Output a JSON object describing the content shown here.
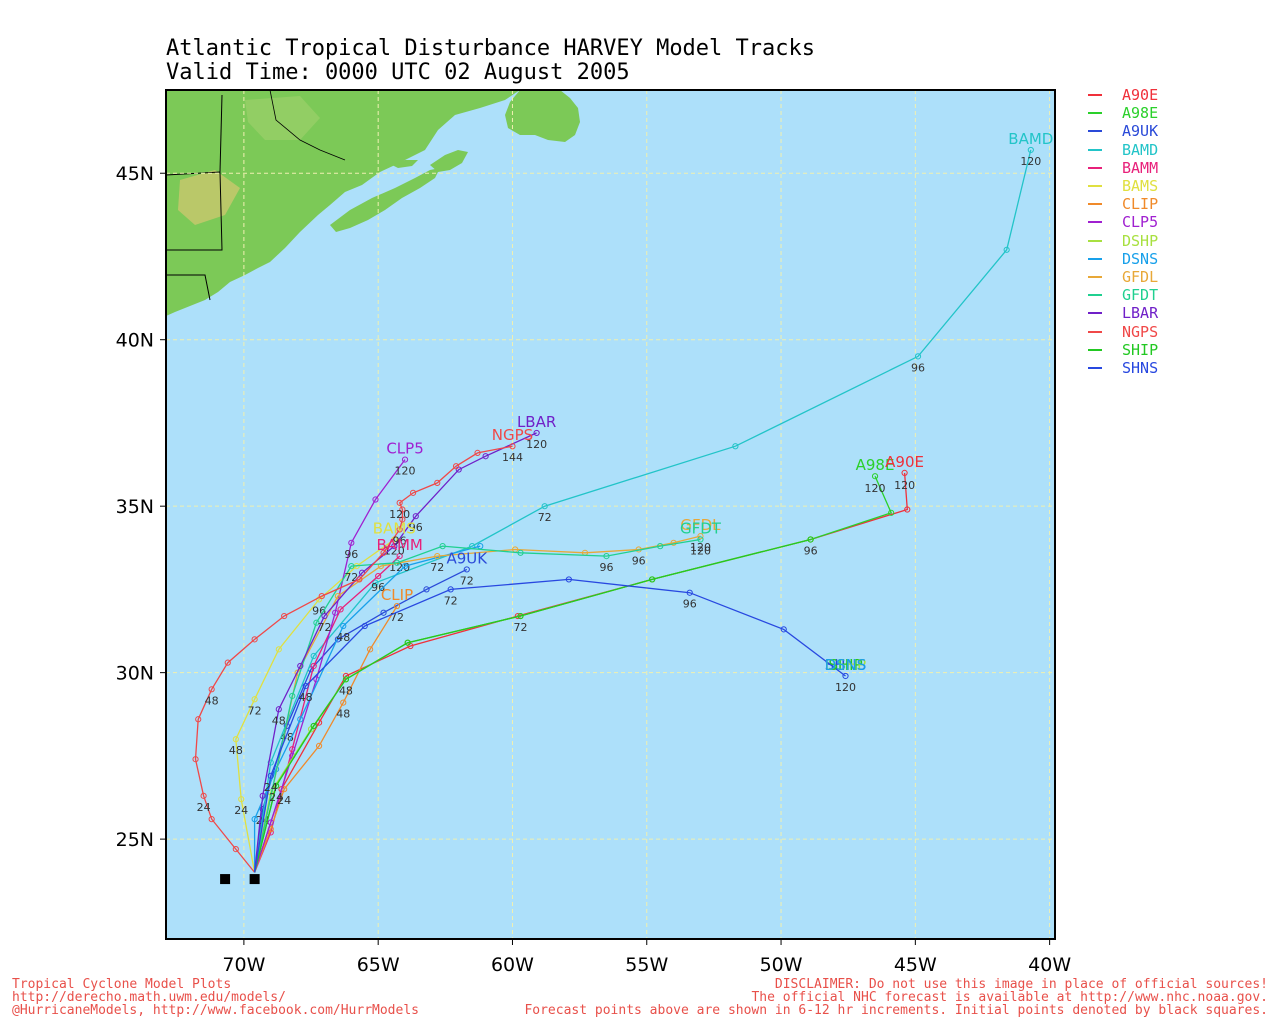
{
  "title": {
    "line1": "Atlantic Tropical Disturbance HARVEY Model Tracks",
    "line2": "Valid Time: 0000 UTC 02 August 2005"
  },
  "axes": {
    "x_ticks": [
      {
        "lon": -70,
        "label": "70W"
      },
      {
        "lon": -65,
        "label": "65W"
      },
      {
        "lon": -60,
        "label": "60W"
      },
      {
        "lon": -55,
        "label": "55W"
      },
      {
        "lon": -50,
        "label": "50W"
      },
      {
        "lon": -45,
        "label": "45W"
      },
      {
        "lon": -40,
        "label": "40W"
      }
    ],
    "y_ticks": [
      {
        "lat": 25,
        "label": "25N"
      },
      {
        "lat": 30,
        "label": "30N"
      },
      {
        "lat": 35,
        "label": "35N"
      },
      {
        "lat": 40,
        "label": "40N"
      },
      {
        "lat": 45,
        "label": "45N"
      }
    ],
    "lon_range": [
      -72.9,
      -39.8
    ],
    "lat_range": [
      22.0,
      47.5
    ],
    "grid": true
  },
  "colors": {
    "ocean": "#ade0fa",
    "land": "#7cc957",
    "grid": "#f0f0b0"
  },
  "legend": [
    {
      "name": "A90E",
      "color": "#f0303a"
    },
    {
      "name": "A98E",
      "color": "#2ad02a"
    },
    {
      "name": "A9UK",
      "color": "#2a4ad8"
    },
    {
      "name": "BAMD",
      "color": "#22c4c8"
    },
    {
      "name": "BAMM",
      "color": "#e8207a"
    },
    {
      "name": "BAMS",
      "color": "#e0e040"
    },
    {
      "name": "CLIP",
      "color": "#f08a2a"
    },
    {
      "name": "CLP5",
      "color": "#a020d0"
    },
    {
      "name": "DSHP",
      "color": "#a8e040"
    },
    {
      "name": "DSNS",
      "color": "#18a0ea"
    },
    {
      "name": "GFDL",
      "color": "#e8a838"
    },
    {
      "name": "GFDT",
      "color": "#20d090"
    },
    {
      "name": "LBAR",
      "color": "#7020c8"
    },
    {
      "name": "NGPS",
      "color": "#f04848"
    },
    {
      "name": "SHIP",
      "color": "#22c822"
    },
    {
      "name": "SHNS",
      "color": "#2848e0"
    }
  ],
  "chart_data": {
    "type": "map-tracks",
    "initial_point": {
      "lon": -69.6,
      "lat": 24.0
    },
    "tracks": [
      {
        "model": "A90E",
        "color": "#f0303a",
        "points": [
          [
            -69.6,
            24.0
          ],
          [
            -68.6,
            26.5
          ],
          [
            -67.2,
            28.5
          ],
          [
            -66.2,
            29.9
          ],
          [
            -63.8,
            30.8
          ],
          [
            -59.8,
            31.7
          ],
          [
            -54.8,
            32.8
          ],
          [
            -48.9,
            34.0
          ],
          [
            -45.3,
            34.9
          ],
          [
            -45.4,
            36.0
          ]
        ],
        "end_hour": "120"
      },
      {
        "model": "A98E",
        "color": "#2ad02a",
        "points": [
          [
            -69.6,
            24.0
          ],
          [
            -68.8,
            26.6
          ],
          [
            -67.4,
            28.4
          ],
          [
            -66.2,
            29.8
          ],
          [
            -63.9,
            30.9
          ],
          [
            -59.7,
            31.7
          ],
          [
            -54.8,
            32.8
          ],
          [
            -48.9,
            34.0
          ],
          [
            -45.9,
            34.8
          ],
          [
            -46.5,
            35.9
          ]
        ],
        "end_hour": "120"
      },
      {
        "model": "A9UK",
        "color": "#2a4ad8",
        "points": [
          [
            -69.6,
            24.0
          ],
          [
            -69.3,
            25.9
          ],
          [
            -68.4,
            28.4
          ],
          [
            -67.5,
            30.1
          ],
          [
            -66.5,
            31.0
          ],
          [
            -64.8,
            31.8
          ],
          [
            -63.2,
            32.5
          ],
          [
            -61.7,
            33.1
          ]
        ],
        "labels": [
          {
            "h": "24",
            "at": 1
          },
          {
            "h": "48",
            "at": 2
          },
          {
            "h": "72",
            "at": 7
          }
        ]
      },
      {
        "model": "BAMD",
        "color": "#22c4c8",
        "points": [
          [
            -69.6,
            24.0
          ],
          [
            -69.0,
            27.3
          ],
          [
            -67.4,
            30.5
          ],
          [
            -65.1,
            32.7
          ],
          [
            -61.5,
            33.8
          ],
          [
            -58.8,
            35.0
          ],
          [
            -51.7,
            36.8
          ],
          [
            -44.9,
            39.5
          ],
          [
            -41.6,
            42.7
          ],
          [
            -40.7,
            45.7
          ]
        ],
        "labels": [
          {
            "h": "72",
            "at": 5
          },
          {
            "h": "96",
            "at": 7
          },
          {
            "h": "120",
            "at": 9
          }
        ]
      },
      {
        "model": "BAMM",
        "color": "#e8207a",
        "points": [
          [
            -69.6,
            24.0
          ],
          [
            -69.0,
            25.2
          ],
          [
            -68.2,
            27.7
          ],
          [
            -67.4,
            30.2
          ],
          [
            -66.4,
            31.9
          ],
          [
            -65.0,
            32.9
          ],
          [
            -64.2,
            33.5
          ]
        ],
        "labels": [
          {
            "h": "96",
            "at": 5
          },
          {
            "h": "120",
            "at": 6
          }
        ]
      },
      {
        "model": "BAMS",
        "color": "#e0e040",
        "points": [
          [
            -69.6,
            24.0
          ],
          [
            -70.1,
            26.2
          ],
          [
            -70.3,
            28.0
          ],
          [
            -69.6,
            29.2
          ],
          [
            -68.7,
            30.7
          ],
          [
            -67.2,
            32.2
          ],
          [
            -65.8,
            33.2
          ],
          [
            -64.4,
            34.0
          ]
        ],
        "labels": [
          {
            "h": "24",
            "at": 1
          },
          {
            "h": "48",
            "at": 2
          },
          {
            "h": "72",
            "at": 3
          },
          {
            "h": "96",
            "at": 5
          },
          {
            "h": "120",
            "at": 7
          }
        ]
      },
      {
        "model": "CLIP",
        "color": "#f08a2a",
        "points": [
          [
            -69.6,
            24.0
          ],
          [
            -69.0,
            25.3
          ],
          [
            -68.5,
            26.5
          ],
          [
            -67.2,
            27.8
          ],
          [
            -66.3,
            29.1
          ],
          [
            -65.3,
            30.7
          ],
          [
            -64.3,
            32.0
          ]
        ],
        "labels": [
          {
            "h": "24",
            "at": 2
          },
          {
            "h": "48",
            "at": 4
          },
          {
            "h": "72",
            "at": 6
          }
        ]
      },
      {
        "model": "CLP5",
        "color": "#a020d0",
        "points": [
          [
            -69.6,
            24.0
          ],
          [
            -69.0,
            25.5
          ],
          [
            -68.2,
            27.5
          ],
          [
            -67.3,
            29.8
          ],
          [
            -66.6,
            31.8
          ],
          [
            -66.0,
            33.9
          ],
          [
            -65.1,
            35.2
          ],
          [
            -64.0,
            36.4
          ]
        ],
        "labels": [
          {
            "h": "96",
            "at": 5
          },
          {
            "h": "120",
            "at": 7
          }
        ]
      },
      {
        "model": "DSHP",
        "color": "#a8e040",
        "points": [
          [
            -69.6,
            24.0
          ],
          [
            -69.0,
            26.4
          ],
          [
            -67.5,
            28.3
          ],
          [
            -66.2,
            29.8
          ],
          [
            -63.9,
            30.9
          ],
          [
            -59.7,
            31.7
          ],
          [
            -54.8,
            32.8
          ],
          [
            -48.9,
            34.0
          ]
        ]
      },
      {
        "model": "DSNS",
        "color": "#18a0ea",
        "points": [
          [
            -69.6,
            24.0
          ],
          [
            -69.6,
            25.6
          ],
          [
            -68.8,
            27.1
          ],
          [
            -67.9,
            28.6
          ],
          [
            -66.3,
            31.4
          ],
          [
            -64.0,
            33.2
          ],
          [
            -61.2,
            33.8
          ]
        ],
        "labels": [
          {
            "h": "48",
            "at": 4
          }
        ]
      },
      {
        "model": "GFDL",
        "color": "#e8a838",
        "points": [
          [
            -69.6,
            24.0
          ],
          [
            -68.0,
            30.0
          ],
          [
            -66.5,
            32.3
          ],
          [
            -64.9,
            33.2
          ],
          [
            -62.8,
            33.5
          ],
          [
            -59.9,
            33.7
          ],
          [
            -57.3,
            33.6
          ],
          [
            -55.3,
            33.7
          ],
          [
            -54.0,
            33.9
          ],
          [
            -53.0,
            34.1
          ]
        ],
        "labels": [
          {
            "h": "72",
            "at": 4
          },
          {
            "h": "96",
            "at": 7
          },
          {
            "h": "120",
            "at": 9
          }
        ]
      },
      {
        "model": "GFDT",
        "color": "#20d090",
        "points": [
          [
            -69.6,
            24.0
          ],
          [
            -68.2,
            29.3
          ],
          [
            -67.3,
            31.5
          ],
          [
            -66.0,
            33.2
          ],
          [
            -64.3,
            33.3
          ],
          [
            -62.6,
            33.8
          ],
          [
            -59.7,
            33.6
          ],
          [
            -56.5,
            33.5
          ],
          [
            -54.5,
            33.8
          ],
          [
            -53.0,
            34.0
          ]
        ],
        "labels": [
          {
            "h": "72",
            "at": 3
          },
          {
            "h": "96",
            "at": 7
          },
          {
            "h": "120",
            "at": 9
          }
        ]
      },
      {
        "model": "LBAR",
        "color": "#7020c8",
        "points": [
          [
            -69.6,
            24.0
          ],
          [
            -69.3,
            26.3
          ],
          [
            -68.7,
            28.9
          ],
          [
            -67.9,
            30.2
          ],
          [
            -67.0,
            31.7
          ],
          [
            -65.6,
            33.0
          ],
          [
            -64.4,
            33.8
          ],
          [
            -63.6,
            34.7
          ],
          [
            -62.0,
            36.1
          ],
          [
            -61.0,
            36.5
          ],
          [
            -59.1,
            37.2
          ]
        ],
        "labels": [
          {
            "h": "48",
            "at": 2
          },
          {
            "h": "72",
            "at": 4
          },
          {
            "h": "96",
            "at": 7
          },
          {
            "h": "120",
            "at": 10
          }
        ]
      },
      {
        "model": "NGPS",
        "color": "#f04848",
        "points": [
          [
            -69.6,
            24.0
          ],
          [
            -70.3,
            24.7
          ],
          [
            -71.2,
            25.6
          ],
          [
            -71.5,
            26.3
          ],
          [
            -71.8,
            27.4
          ],
          [
            -71.7,
            28.6
          ],
          [
            -71.2,
            29.5
          ],
          [
            -70.6,
            30.3
          ],
          [
            -69.6,
            31.0
          ],
          [
            -68.5,
            31.7
          ],
          [
            -67.1,
            32.3
          ],
          [
            -65.7,
            32.8
          ],
          [
            -64.8,
            33.6
          ],
          [
            -64.2,
            34.3
          ],
          [
            -64.1,
            34.6
          ],
          [
            -64.1,
            34.9
          ],
          [
            -64.2,
            35.1
          ],
          [
            -63.7,
            35.4
          ],
          [
            -62.8,
            35.7
          ],
          [
            -62.1,
            36.2
          ],
          [
            -61.3,
            36.6
          ],
          [
            -60.0,
            36.8
          ]
        ],
        "labels": [
          {
            "h": "24",
            "at": 3
          },
          {
            "h": "48",
            "at": 6
          },
          {
            "h": "96",
            "at": 13
          },
          {
            "h": "120",
            "at": 16
          },
          {
            "h": "144",
            "at": 21
          }
        ]
      },
      {
        "model": "SHIP",
        "color": "#22c822",
        "points": [
          [
            -69.6,
            24.0
          ],
          [
            -68.8,
            26.6
          ],
          [
            -67.4,
            28.4
          ],
          [
            -66.2,
            29.8
          ],
          [
            -63.9,
            30.9
          ],
          [
            -59.7,
            31.7
          ],
          [
            -54.8,
            32.8
          ],
          [
            -48.9,
            34.0
          ]
        ],
        "labels": [
          {
            "h": "24",
            "at": 1
          },
          {
            "h": "48",
            "at": 3
          },
          {
            "h": "72",
            "at": 5
          },
          {
            "h": "96",
            "at": 7
          }
        ]
      },
      {
        "model": "SHNS",
        "color": "#2848e0",
        "points": [
          [
            -69.6,
            24.0
          ],
          [
            -69.0,
            26.9
          ],
          [
            -67.7,
            29.6
          ],
          [
            -65.5,
            31.4
          ],
          [
            -62.3,
            32.5
          ],
          [
            -57.9,
            32.8
          ],
          [
            -53.4,
            32.4
          ],
          [
            -49.9,
            31.3
          ],
          [
            -47.6,
            29.9
          ]
        ],
        "labels": [
          {
            "h": "24",
            "at": 1
          },
          {
            "h": "48",
            "at": 2
          },
          {
            "h": "72",
            "at": 4
          },
          {
            "h": "96",
            "at": 6
          },
          {
            "h": "120",
            "at": 8
          }
        ]
      }
    ],
    "end_labels": [
      {
        "text": "BAMD",
        "lon": -40.7,
        "lat": 45.7,
        "color": "#22c4c8"
      },
      {
        "text": "A98E",
        "lon": -46.5,
        "lat": 35.9,
        "color": "#2ad02a"
      },
      {
        "text": "A90E",
        "lon": -45.4,
        "lat": 36.0,
        "color": "#f0303a"
      },
      {
        "text": "LBAR",
        "lon": -59.1,
        "lat": 37.2,
        "color": "#7020c8"
      },
      {
        "text": "NGPS",
        "lon": -60.0,
        "lat": 36.8,
        "color": "#f04848"
      },
      {
        "text": "CLP5",
        "lon": -64.0,
        "lat": 36.4,
        "color": "#a020d0"
      },
      {
        "text": "GFDL",
        "lon": -53.0,
        "lat": 34.1,
        "color": "#e8a838"
      },
      {
        "text": "GFDT",
        "lon": -53.0,
        "lat": 34.0,
        "color": "#20d090"
      },
      {
        "text": "A9UK",
        "lon": -61.7,
        "lat": 33.1,
        "color": "#2a4ad8"
      },
      {
        "text": "CLIP",
        "lon": -64.3,
        "lat": 32.0,
        "color": "#f08a2a"
      },
      {
        "text": "BAMM",
        "lon": -64.2,
        "lat": 33.5,
        "color": "#e8207a"
      },
      {
        "text": "BAMS",
        "lon": -64.4,
        "lat": 34.0,
        "color": "#e0e040"
      },
      {
        "text": "SHNS",
        "lon": -47.6,
        "lat": 29.9,
        "color": "#2848e0"
      },
      {
        "text": "SHIP",
        "lon": -47.6,
        "lat": 29.9,
        "color": "#22c822"
      },
      {
        "text": "DSHP",
        "lon": -47.6,
        "lat": 29.9,
        "color": "#a8e040"
      },
      {
        "text": "DSNS",
        "lon": -47.6,
        "lat": 29.9,
        "color": "#18a0ea"
      }
    ],
    "initial_squares": [
      {
        "lon": -70.7,
        "lat": 23.8
      },
      {
        "lon": -69.6,
        "lat": 23.8
      }
    ]
  },
  "footer": {
    "left1": "Tropical Cyclone Model Plots",
    "left2": "http://derecho.math.uwm.edu/models/",
    "left3": "@HurricaneModels, http://www.facebook.com/HurrModels",
    "right1": "DISCLAIMER: Do not use this image in place of official sources!",
    "right2": "The official NHC forecast is available at http://www.nhc.noaa.gov.",
    "right3": "Forecast points above are shown in 6-12 hr increments. Initial points denoted by black squares."
  }
}
